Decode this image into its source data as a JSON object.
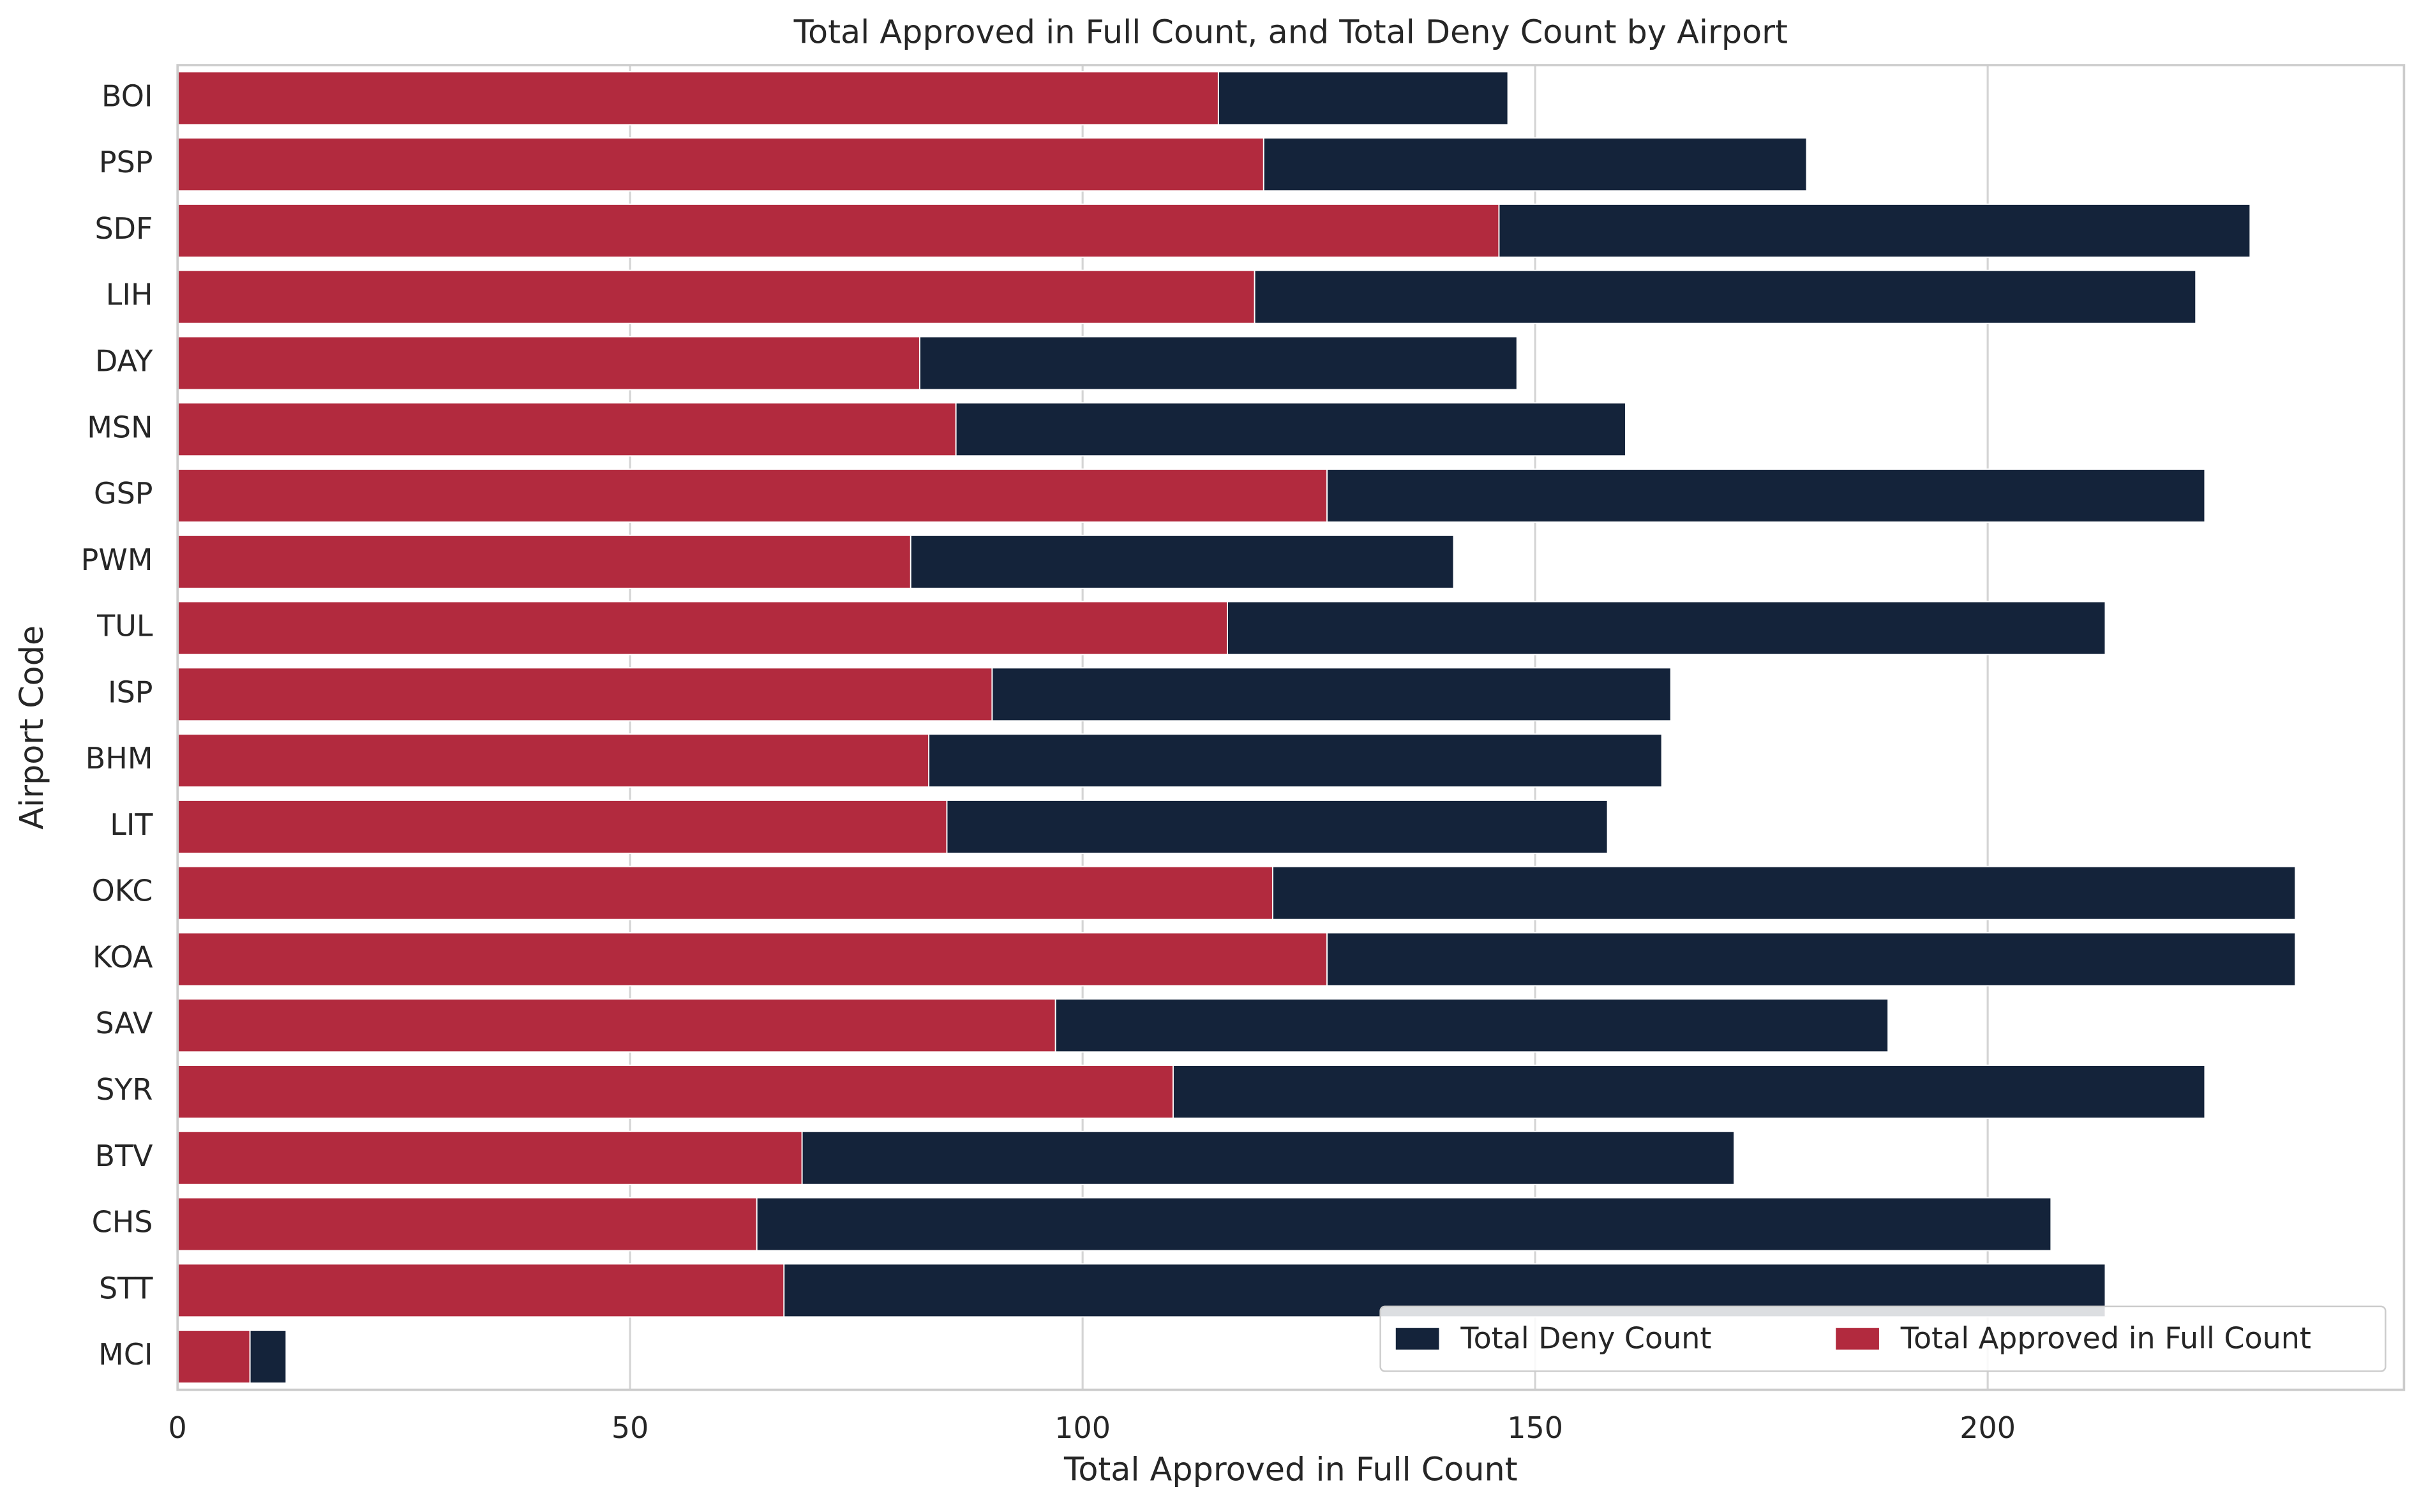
{
  "chart_data": {
    "type": "bar",
    "orientation": "horizontal",
    "barmode": "overlay",
    "title": "Total Approved in Full Count, and Total Deny Count by Airport",
    "xlabel": "Total Approved in Full Count",
    "ylabel": "Airport Code",
    "categories": [
      "BOI",
      "PSP",
      "SDF",
      "LIH",
      "DAY",
      "MSN",
      "GSP",
      "PWM",
      "TUL",
      "ISP",
      "BHM",
      "LIT",
      "OKC",
      "KOA",
      "SAV",
      "SYR",
      "BTV",
      "CHS",
      "STT",
      "MCI"
    ],
    "series": [
      {
        "name": "Total Deny Count",
        "color": "#14233a",
        "values": [
          147,
          180,
          229,
          223,
          148,
          160,
          224,
          141,
          213,
          165,
          164,
          158,
          234,
          234,
          189,
          224,
          172,
          207,
          213,
          12
        ]
      },
      {
        "name": "Total Approved in Full Count",
        "color": "#b22a3e",
        "values": [
          115,
          120,
          146,
          119,
          82,
          86,
          127,
          81,
          116,
          90,
          83,
          85,
          121,
          127,
          97,
          110,
          69,
          64,
          67,
          8
        ]
      }
    ],
    "xlim": [
      0,
      246
    ],
    "xticks": [
      0,
      50,
      100,
      150,
      200
    ],
    "grid": true,
    "legend": "lower right"
  }
}
